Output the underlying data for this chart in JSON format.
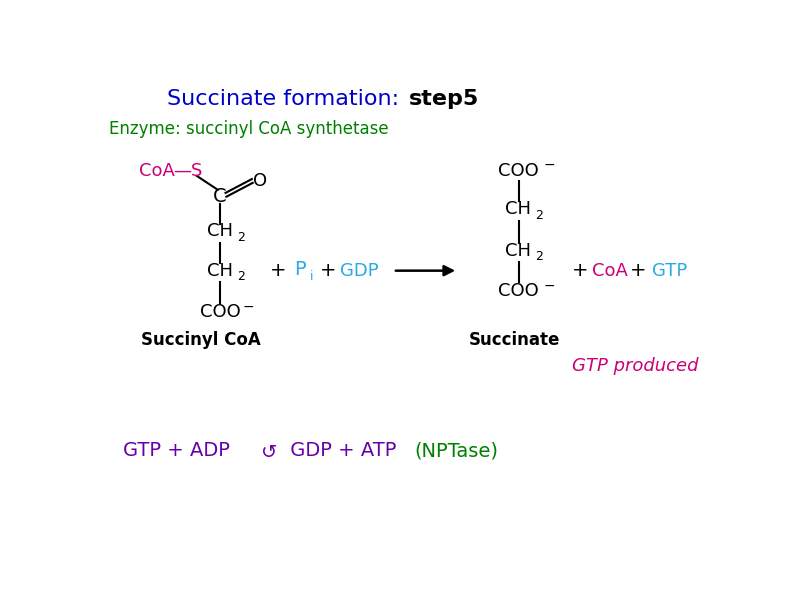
{
  "title_blue": "Succinate formation: ",
  "title_black": "step5",
  "enzyme_label": "Enzyme: succinyl CoA synthetase",
  "enzyme_color": "#008000",
  "title_color_blue": "#0000CC",
  "title_color_black": "#000000",
  "bg_color": "#ffffff",
  "magenta": "#CC0077",
  "cyan": "#29ABE2",
  "black": "#000000",
  "gtp_produced_color": "#CC0077",
  "bottom_purple": "#6600AA",
  "bottom_green": "#008000"
}
